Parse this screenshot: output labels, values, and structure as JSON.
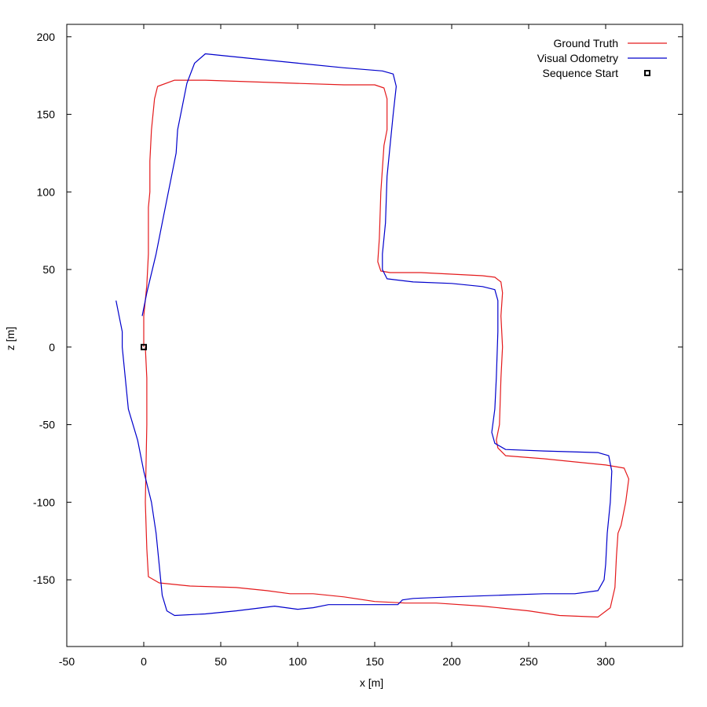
{
  "chart_data": {
    "type": "line",
    "title": "",
    "xlabel": "x [m]",
    "ylabel": "z [m]",
    "xlim": [
      -50,
      350
    ],
    "ylim": [
      -193,
      208
    ],
    "xticks": [
      -50,
      0,
      50,
      100,
      150,
      200,
      250,
      300
    ],
    "yticks": [
      -150,
      -100,
      -50,
      0,
      50,
      100,
      150,
      200
    ],
    "grid": false,
    "legend_position": "top-right",
    "series": [
      {
        "name": "Ground Truth",
        "color": "#e41a1c",
        "points": [
          [
            0,
            0
          ],
          [
            0,
            20
          ],
          [
            2,
            40
          ],
          [
            3,
            60
          ],
          [
            3,
            90
          ],
          [
            4,
            100
          ],
          [
            4,
            120
          ],
          [
            5,
            140
          ],
          [
            7,
            160
          ],
          [
            9,
            168
          ],
          [
            20,
            172
          ],
          [
            40,
            172
          ],
          [
            70,
            171
          ],
          [
            100,
            170
          ],
          [
            130,
            169
          ],
          [
            150,
            169
          ],
          [
            156,
            167
          ],
          [
            158,
            160
          ],
          [
            158,
            140
          ],
          [
            156,
            130
          ],
          [
            154,
            100
          ],
          [
            153,
            70
          ],
          [
            152,
            55
          ],
          [
            154,
            49
          ],
          [
            160,
            48
          ],
          [
            180,
            48
          ],
          [
            200,
            47
          ],
          [
            220,
            46
          ],
          [
            228,
            45
          ],
          [
            232,
            42
          ],
          [
            233,
            35
          ],
          [
            232,
            20
          ],
          [
            233,
            0
          ],
          [
            232,
            -20
          ],
          [
            231,
            -50
          ],
          [
            229,
            -60
          ],
          [
            230,
            -65
          ],
          [
            235,
            -70
          ],
          [
            260,
            -72
          ],
          [
            300,
            -76
          ],
          [
            312,
            -78
          ],
          [
            315,
            -85
          ],
          [
            313,
            -100
          ],
          [
            310,
            -115
          ],
          [
            308,
            -120
          ],
          [
            307,
            -135
          ],
          [
            306,
            -155
          ],
          [
            303,
            -168
          ],
          [
            295,
            -174
          ],
          [
            270,
            -173
          ],
          [
            250,
            -170
          ],
          [
            220,
            -167
          ],
          [
            190,
            -165
          ],
          [
            170,
            -165
          ],
          [
            150,
            -164
          ],
          [
            130,
            -161
          ],
          [
            110,
            -159
          ],
          [
            95,
            -159
          ],
          [
            80,
            -157
          ],
          [
            60,
            -155
          ],
          [
            30,
            -154
          ],
          [
            10,
            -152
          ],
          [
            3,
            -148
          ],
          [
            2,
            -130
          ],
          [
            1,
            -100
          ],
          [
            2,
            -50
          ],
          [
            2,
            -20
          ],
          [
            1,
            0
          ]
        ]
      },
      {
        "name": "Visual Odometry",
        "color": "#0000cc",
        "points": [
          [
            -1,
            20
          ],
          [
            2,
            35
          ],
          [
            8,
            60
          ],
          [
            12,
            80
          ],
          [
            14,
            90
          ],
          [
            18,
            110
          ],
          [
            21,
            125
          ],
          [
            22,
            140
          ],
          [
            25,
            155
          ],
          [
            28,
            170
          ],
          [
            33,
            183
          ],
          [
            40,
            189
          ],
          [
            70,
            186
          ],
          [
            100,
            183
          ],
          [
            130,
            180
          ],
          [
            155,
            178
          ],
          [
            162,
            176
          ],
          [
            164,
            168
          ],
          [
            162,
            150
          ],
          [
            160,
            130
          ],
          [
            158,
            110
          ],
          [
            157,
            80
          ],
          [
            155,
            60
          ],
          [
            155,
            50
          ],
          [
            158,
            44
          ],
          [
            175,
            42
          ],
          [
            200,
            41
          ],
          [
            220,
            39
          ],
          [
            228,
            37
          ],
          [
            230,
            30
          ],
          [
            230,
            10
          ],
          [
            229,
            -20
          ],
          [
            228,
            -40
          ],
          [
            226,
            -55
          ],
          [
            228,
            -62
          ],
          [
            235,
            -66
          ],
          [
            260,
            -67
          ],
          [
            295,
            -68
          ],
          [
            302,
            -70
          ],
          [
            304,
            -80
          ],
          [
            303,
            -100
          ],
          [
            301,
            -120
          ],
          [
            300,
            -140
          ],
          [
            299,
            -150
          ],
          [
            295,
            -157
          ],
          [
            280,
            -159
          ],
          [
            260,
            -159
          ],
          [
            230,
            -160
          ],
          [
            200,
            -161
          ],
          [
            175,
            -162
          ],
          [
            168,
            -163
          ],
          [
            165,
            -166
          ],
          [
            150,
            -166
          ],
          [
            130,
            -166
          ],
          [
            120,
            -166
          ],
          [
            110,
            -168
          ],
          [
            100,
            -169
          ],
          [
            85,
            -167
          ],
          [
            60,
            -170
          ],
          [
            40,
            -172
          ],
          [
            20,
            -173
          ],
          [
            15,
            -170
          ],
          [
            12,
            -160
          ],
          [
            10,
            -140
          ],
          [
            8,
            -120
          ],
          [
            5,
            -100
          ],
          [
            0,
            -80
          ],
          [
            -4,
            -60
          ],
          [
            -10,
            -40
          ],
          [
            -12,
            -20
          ],
          [
            -14,
            0
          ],
          [
            -14,
            10
          ],
          [
            -16,
            20
          ],
          [
            -18,
            30
          ]
        ]
      }
    ],
    "markers": [
      {
        "name": "Sequence Start",
        "point": [
          0,
          0
        ],
        "shape": "square",
        "color": "#000000"
      }
    ]
  }
}
